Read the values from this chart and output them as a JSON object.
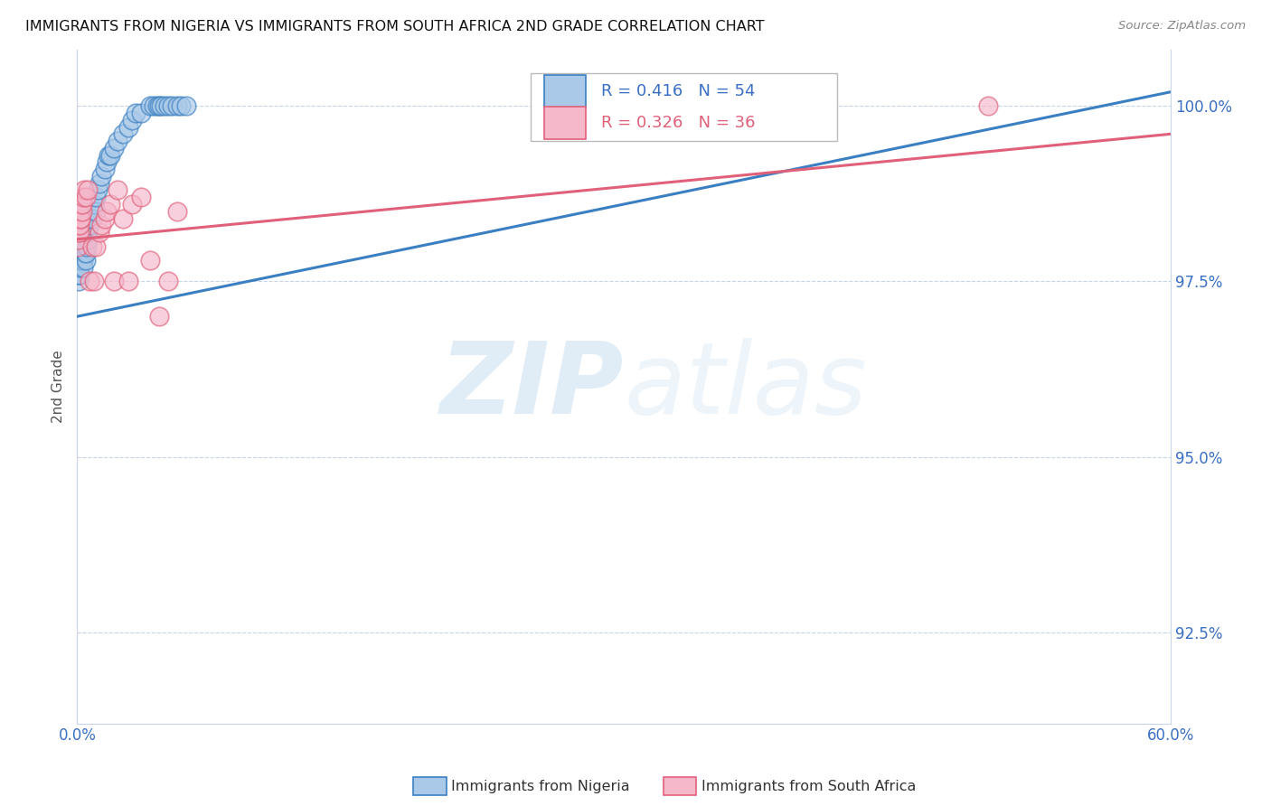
{
  "title": "IMMIGRANTS FROM NIGERIA VS IMMIGRANTS FROM SOUTH AFRICA 2ND GRADE CORRELATION CHART",
  "source": "Source: ZipAtlas.com",
  "ylabel": "2nd Grade",
  "legend_nigeria": "Immigrants from Nigeria",
  "legend_sa": "Immigrants from South Africa",
  "R_nigeria": 0.416,
  "N_nigeria": 54,
  "R_sa": 0.326,
  "N_sa": 36,
  "color_nigeria": "#aac9e8",
  "color_sa": "#f5b8cb",
  "color_nigeria_line": "#3a7fc1",
  "color_sa_line": "#e0607a",
  "watermark_zip": "ZIP",
  "watermark_atlas": "atlas",
  "xlim": [
    0.0,
    0.6
  ],
  "ylim": [
    0.912,
    1.008
  ],
  "right_yticks": [
    1.0,
    0.975,
    0.95,
    0.925
  ],
  "right_yticklabels": [
    "100.0%",
    "97.5%",
    "95.0%",
    "92.5%"
  ],
  "xtick_labels_left": "0.0%",
  "xtick_labels_right": "60.0%",
  "ng_x": [
    0.0008,
    0.001,
    0.0012,
    0.0015,
    0.0018,
    0.002,
    0.002,
    0.0022,
    0.0025,
    0.003,
    0.003,
    0.003,
    0.0032,
    0.0035,
    0.004,
    0.004,
    0.0042,
    0.005,
    0.005,
    0.0055,
    0.006,
    0.006,
    0.007,
    0.007,
    0.008,
    0.008,
    0.009,
    0.01,
    0.01,
    0.011,
    0.012,
    0.013,
    0.015,
    0.016,
    0.017,
    0.018,
    0.02,
    0.022,
    0.025,
    0.028,
    0.03,
    0.032,
    0.035,
    0.04,
    0.042,
    0.044,
    0.045,
    0.046,
    0.048,
    0.05,
    0.052,
    0.055,
    0.057,
    0.06
  ],
  "ng_y": [
    0.975,
    0.976,
    0.976,
    0.977,
    0.978,
    0.978,
    0.979,
    0.98,
    0.981,
    0.981,
    0.982,
    0.983,
    0.978,
    0.977,
    0.979,
    0.98,
    0.982,
    0.978,
    0.979,
    0.98,
    0.981,
    0.982,
    0.983,
    0.984,
    0.985,
    0.984,
    0.986,
    0.985,
    0.987,
    0.988,
    0.989,
    0.99,
    0.991,
    0.992,
    0.993,
    0.993,
    0.994,
    0.995,
    0.996,
    0.997,
    0.998,
    0.999,
    0.999,
    1.0,
    1.0,
    1.0,
    1.0,
    1.0,
    1.0,
    1.0,
    1.0,
    1.0,
    1.0,
    1.0
  ],
  "sa_x": [
    0.0005,
    0.0008,
    0.001,
    0.001,
    0.0012,
    0.0015,
    0.0018,
    0.002,
    0.002,
    0.0025,
    0.003,
    0.003,
    0.0035,
    0.004,
    0.005,
    0.006,
    0.007,
    0.008,
    0.009,
    0.01,
    0.012,
    0.013,
    0.015,
    0.016,
    0.018,
    0.02,
    0.022,
    0.025,
    0.028,
    0.03,
    0.035,
    0.04,
    0.045,
    0.05,
    0.055,
    0.5
  ],
  "sa_y": [
    0.98,
    0.981,
    0.982,
    0.983,
    0.982,
    0.983,
    0.984,
    0.985,
    0.984,
    0.986,
    0.985,
    0.986,
    0.987,
    0.988,
    0.987,
    0.988,
    0.975,
    0.98,
    0.975,
    0.98,
    0.982,
    0.983,
    0.984,
    0.985,
    0.986,
    0.975,
    0.988,
    0.984,
    0.975,
    0.986,
    0.987,
    0.978,
    0.97,
    0.975,
    0.985,
    1.0
  ],
  "ng_trend_x": [
    0.0,
    0.6
  ],
  "ng_trend_y": [
    0.97,
    1.002
  ],
  "sa_trend_x": [
    0.0,
    0.6
  ],
  "sa_trend_y": [
    0.981,
    0.996
  ]
}
